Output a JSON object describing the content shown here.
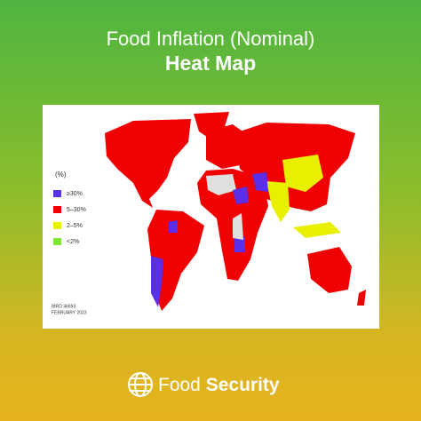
{
  "header": {
    "title": "Food Inflation (Nominal)",
    "subtitle": "Heat Map"
  },
  "legend": {
    "title": "(%)",
    "items": [
      {
        "label": "≥30%",
        "color": "#5b2ee8"
      },
      {
        "label": "5–30%",
        "color": "#f00000"
      },
      {
        "label": "2–5%",
        "color": "#e8f000"
      },
      {
        "label": "<2%",
        "color": "#7de832"
      }
    ]
  },
  "source": {
    "id": "IBRD 46693",
    "date": "FEBRUARY 2023"
  },
  "footer": {
    "brand_light": "Food",
    "brand_bold": "Security"
  }
}
